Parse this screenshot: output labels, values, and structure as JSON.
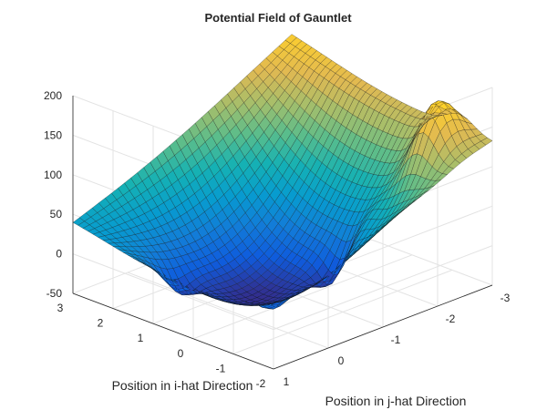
{
  "chart_data": {
    "type": "surface",
    "title": "Potential Field of Gauntlet",
    "xlabel": "Position in i-hat Direction",
    "ylabel": "Position in j-hat Direction",
    "zlabel": "",
    "x_ticks": [
      "3",
      "2",
      "1",
      "0",
      "-1",
      "-2"
    ],
    "y_ticks": [
      "1",
      "0",
      "-1",
      "-2",
      "-3"
    ],
    "z_ticks": [
      "-50",
      "0",
      "50",
      "100",
      "150",
      "200"
    ],
    "xlim": [
      -2,
      3
    ],
    "ylim": [
      -3,
      1
    ],
    "zlim": [
      -50,
      200
    ],
    "colormap": "parula",
    "grid": true,
    "surface_estimates": {
      "corner_values": [
        {
          "x": 3,
          "y": 1,
          "z": 52
        },
        {
          "x": 3,
          "y": -3,
          "z": 178
        },
        {
          "x": -2,
          "y": 1,
          "z": 55
        },
        {
          "x": -2,
          "y": -3,
          "z": 138
        }
      ],
      "minimum": {
        "x": 0.5,
        "y": -0.5,
        "z": -48
      },
      "peak": {
        "x": -1.2,
        "y": -2.5,
        "z": 190
      }
    }
  }
}
